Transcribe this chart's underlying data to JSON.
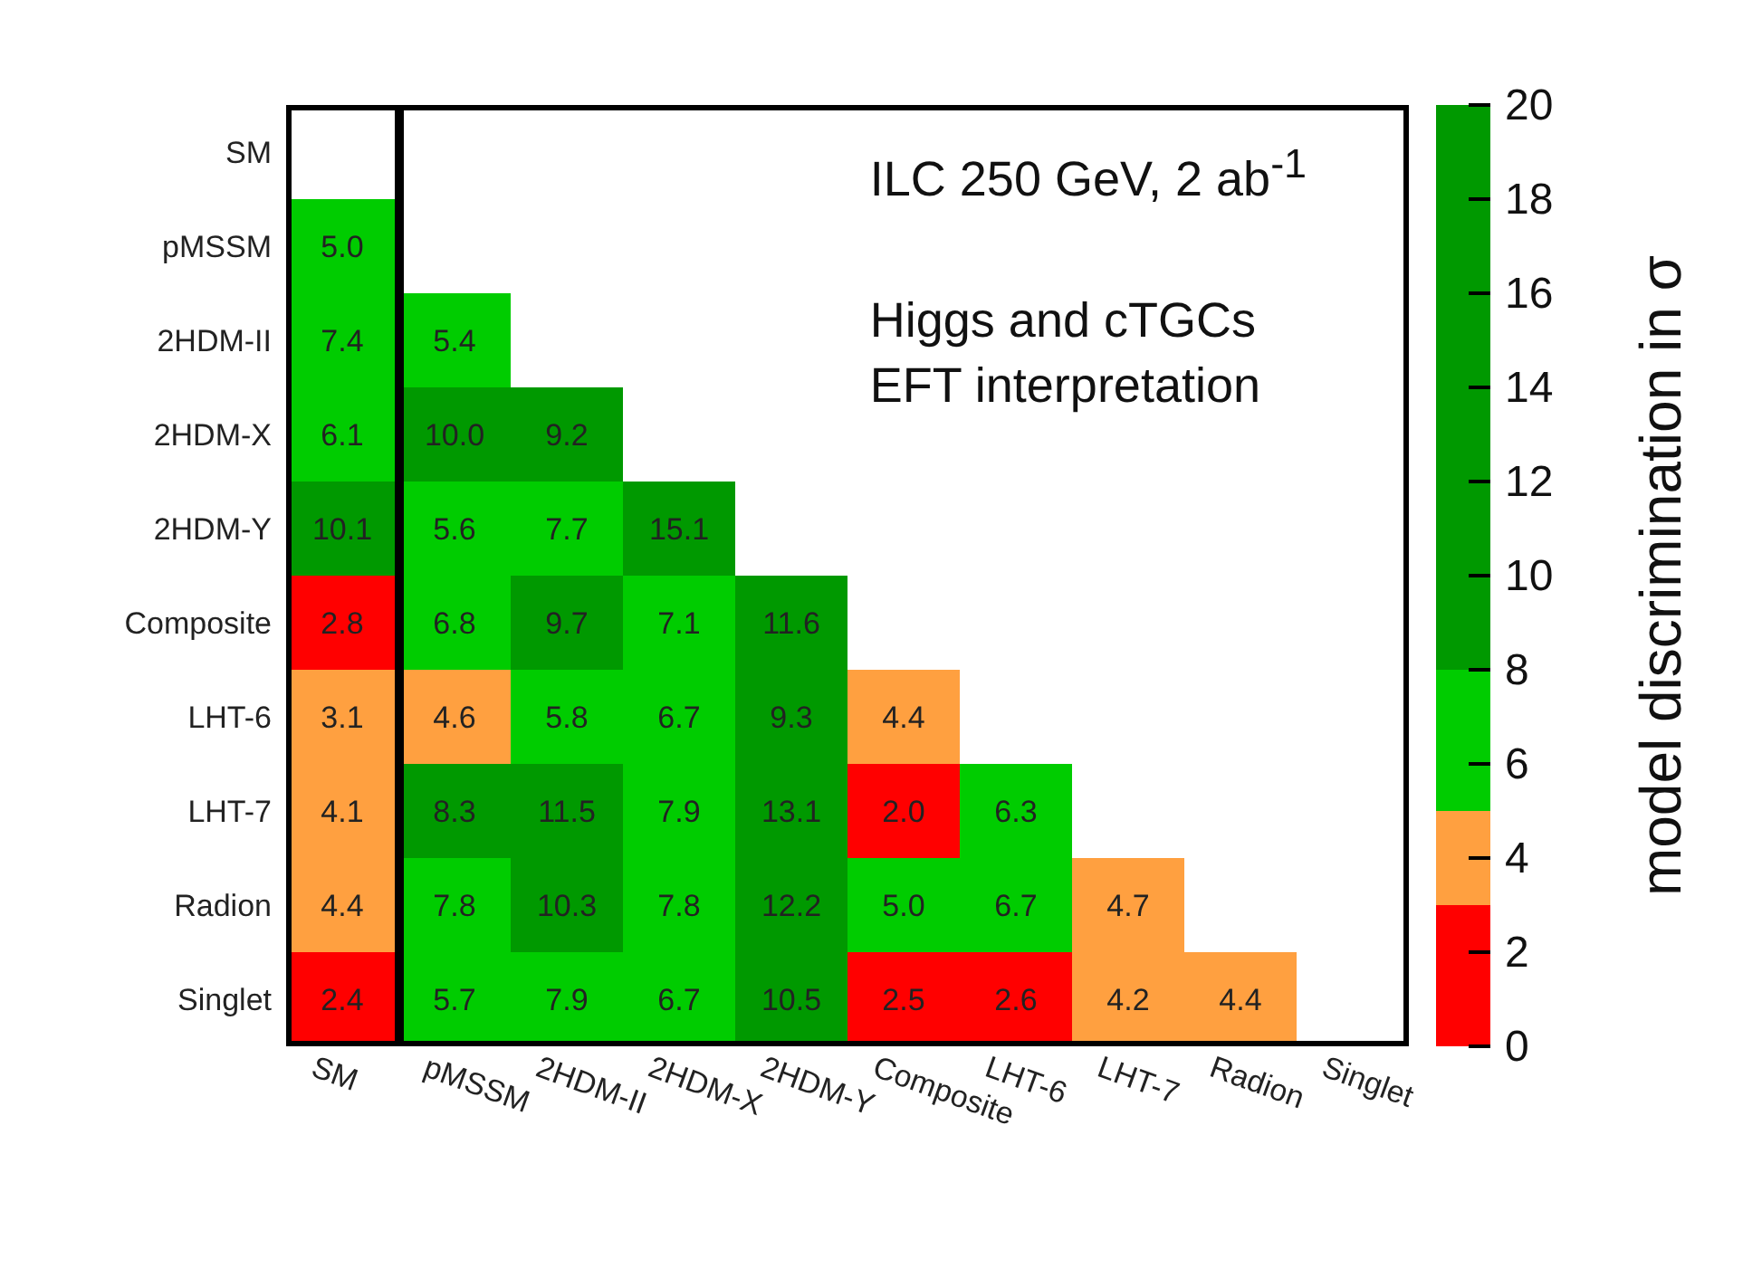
{
  "chart_data": {
    "type": "heatmap",
    "clabel": "model discrimination in σ",
    "categories": [
      "SM",
      "pMSSM",
      "2HDM-II",
      "2HDM-X",
      "2HDM-Y",
      "Composite",
      "LHT-6",
      "LHT-7",
      "Radion",
      "Singlet"
    ],
    "y_categories": [
      "SM",
      "pMSSM",
      "2HDM-II",
      "2HDM-X",
      "2HDM-Y",
      "Composite",
      "LHT-6",
      "LHT-7",
      "Radion",
      "Singlet"
    ],
    "cells": [
      [
        null,
        null,
        null,
        null,
        null,
        null,
        null,
        null,
        null,
        null
      ],
      [
        5.0,
        null,
        null,
        null,
        null,
        null,
        null,
        null,
        null,
        null
      ],
      [
        7.4,
        5.4,
        null,
        null,
        null,
        null,
        null,
        null,
        null,
        null
      ],
      [
        6.1,
        10.0,
        9.2,
        null,
        null,
        null,
        null,
        null,
        null,
        null
      ],
      [
        10.1,
        5.6,
        7.7,
        15.1,
        null,
        null,
        null,
        null,
        null,
        null
      ],
      [
        2.8,
        6.8,
        9.7,
        7.1,
        11.6,
        null,
        null,
        null,
        null,
        null
      ],
      [
        3.1,
        4.6,
        5.8,
        6.7,
        9.3,
        4.4,
        null,
        null,
        null,
        null
      ],
      [
        4.1,
        8.3,
        11.5,
        7.9,
        13.1,
        2.0,
        6.3,
        null,
        null,
        null
      ],
      [
        4.4,
        7.8,
        10.3,
        7.8,
        12.2,
        5.0,
        6.7,
        4.7,
        null,
        null
      ],
      [
        2.4,
        5.7,
        7.9,
        6.7,
        10.5,
        2.5,
        2.6,
        4.2,
        4.4,
        null
      ]
    ],
    "cell_labels": [
      [
        null,
        null,
        null,
        null,
        null,
        null,
        null,
        null,
        null,
        null
      ],
      [
        "5.0",
        null,
        null,
        null,
        null,
        null,
        null,
        null,
        null,
        null
      ],
      [
        "7.4",
        "5.4",
        null,
        null,
        null,
        null,
        null,
        null,
        null,
        null
      ],
      [
        "6.1",
        "10.0",
        "9.2",
        null,
        null,
        null,
        null,
        null,
        null,
        null
      ],
      [
        "10.1",
        "5.6",
        "7.7",
        "15.1",
        null,
        null,
        null,
        null,
        null,
        null
      ],
      [
        "2.8",
        "6.8",
        "9.7",
        "7.1",
        "11.6",
        null,
        null,
        null,
        null,
        null
      ],
      [
        "3.1",
        "4.6",
        "5.8",
        "6.7",
        "9.3",
        "4.4",
        null,
        null,
        null,
        null
      ],
      [
        "4.1",
        "8.3",
        "11.5",
        "7.9",
        "13.1",
        "2.0",
        "6.3",
        null,
        null,
        null
      ],
      [
        "4.4",
        "7.8",
        "10.3",
        "7.8",
        "12.2",
        "5.0",
        "6.7",
        "4.7",
        null,
        null
      ],
      [
        "2.4",
        "5.7",
        "7.9",
        "6.7",
        "10.5",
        "2.5",
        "2.6",
        "4.2",
        "4.4",
        null
      ]
    ],
    "data_labels": true,
    "clim": [
      0,
      20
    ],
    "cticks": [
      0,
      2,
      4,
      6,
      8,
      10,
      12,
      14,
      16,
      18,
      20
    ],
    "annotations": [
      "ILC 250 GeV, 2 ab$^{-1}$",
      "Higgs and cTGCs",
      "EFT interpretation"
    ]
  }
}
